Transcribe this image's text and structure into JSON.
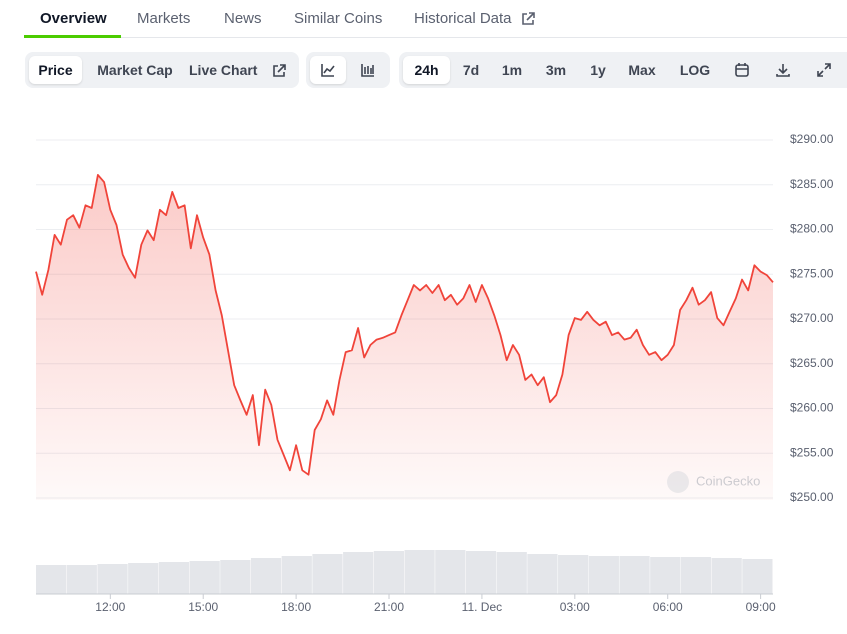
{
  "tabs": [
    "Overview",
    "Markets",
    "News",
    "Similar Coins",
    "Historical Data"
  ],
  "toolbar": {
    "metric": [
      "Price",
      "Market Cap",
      "Live Chart"
    ],
    "range": [
      "24h",
      "7d",
      "1m",
      "3m",
      "1y",
      "Max",
      "LOG"
    ]
  },
  "watermark": "CoinGecko",
  "chart_data": {
    "type": "line",
    "x": [
      -2.4,
      -2.2,
      -2,
      -1.8,
      -1.6,
      -1.4,
      -1.2,
      -1,
      -0.8,
      -0.6,
      -0.4,
      -0.2,
      0,
      0.2,
      0.4,
      0.6,
      0.8,
      1,
      1.2,
      1.4,
      1.6,
      1.8,
      2,
      2.2,
      2.4,
      2.6,
      2.8,
      3,
      3.2,
      3.4,
      3.6,
      3.8,
      4,
      4.2,
      4.4,
      4.6,
      4.8,
      5,
      5.2,
      5.4,
      5.6,
      5.8,
      6,
      6.2,
      6.4,
      6.6,
      6.8,
      7,
      7.2,
      7.4,
      7.6,
      7.8,
      8,
      8.2,
      8.4,
      8.6,
      8.8,
      9,
      9.2,
      9.4,
      9.6,
      9.8,
      10,
      10.2,
      10.4,
      10.6,
      10.8,
      11,
      11.2,
      11.4,
      11.6,
      11.8,
      12,
      12.2,
      12.4,
      12.6,
      12.8,
      13,
      13.2,
      13.4,
      13.6,
      13.8,
      14,
      14.2,
      14.4,
      14.6,
      14.8,
      15,
      15.2,
      15.4,
      15.6,
      15.8,
      16,
      16.2,
      16.4,
      16.6,
      16.8,
      17,
      17.2,
      17.4,
      17.6,
      17.8,
      18,
      18.2,
      18.4,
      18.6,
      18.8,
      19,
      19.2,
      19.4,
      19.6,
      19.8,
      20,
      20.2,
      20.4,
      20.6,
      20.8,
      21,
      21.2,
      21.4
    ],
    "series": [
      {
        "color": "#f0443a",
        "values": [
          275.3,
          272.7,
          275.5,
          279.4,
          278.3,
          281.1,
          281.6,
          280.2,
          282.7,
          282.4,
          286.1,
          285.3,
          282.2,
          280.5,
          277.2,
          275.7,
          274.6,
          278.3,
          279.9,
          278.8,
          282.2,
          281.6,
          284.2,
          282.4,
          282.7,
          277.9,
          281.6,
          279.1,
          277.2,
          273.2,
          270.4,
          266.5,
          262.6,
          260.9,
          259.3,
          261.5,
          255.9,
          262.1,
          260.4,
          256.5,
          254.8,
          253.1,
          255.9,
          253.1,
          252.6,
          257.6,
          258.8,
          260.9,
          259.3,
          263.2,
          266.3,
          266.5,
          269.0,
          265.7,
          267.1,
          267.7,
          267.9,
          268.2,
          268.5,
          270.4,
          272.1,
          273.8,
          273.2,
          273.8,
          272.9,
          273.8,
          272.1,
          272.7,
          271.6,
          272.3,
          273.8,
          271.9,
          273.8,
          272.3,
          270.4,
          268.2,
          265.4,
          267.1,
          266.0,
          263.2,
          263.8,
          262.6,
          263.5,
          260.7,
          261.5,
          263.8,
          268.2,
          270.1,
          269.9,
          270.8,
          269.9,
          269.3,
          269.7,
          268.2,
          268.5,
          267.7,
          267.9,
          268.8,
          267.1,
          266.0,
          266.3,
          265.4,
          266.0,
          267.1,
          271.0,
          272.1,
          273.5,
          271.6,
          272.1,
          273.0,
          270.1,
          269.3,
          270.8,
          272.3,
          274.4,
          273.2,
          276.0,
          275.3,
          274.9,
          274.1
        ]
      }
    ],
    "xlim": [
      -2.4,
      21.4
    ],
    "xticks": [
      {
        "value": 0,
        "label": "12:00"
      },
      {
        "value": 3,
        "label": "15:00"
      },
      {
        "value": 6,
        "label": "18:00"
      },
      {
        "value": 9,
        "label": "21:00"
      },
      {
        "value": 12,
        "label": "11. Dec"
      },
      {
        "value": 15,
        "label": "03:00"
      },
      {
        "value": 18,
        "label": "06:00"
      },
      {
        "value": 21,
        "label": "09:00"
      }
    ],
    "ylim": [
      250,
      290
    ],
    "yticks": [
      {
        "value": 250,
        "label": "$250.00"
      },
      {
        "value": 255,
        "label": "$255.00"
      },
      {
        "value": 260,
        "label": "$260.00"
      },
      {
        "value": 265,
        "label": "$265.00"
      },
      {
        "value": 270,
        "label": "$270.00"
      },
      {
        "value": 275,
        "label": "$275.00"
      },
      {
        "value": 280,
        "label": "$280.00"
      },
      {
        "value": 285,
        "label": "$285.00"
      },
      {
        "value": 290,
        "label": "$290.00"
      }
    ],
    "grid": true,
    "volume": {
      "color": "#e4e6ea",
      "lim": [
        0,
        100
      ],
      "values": [
        29,
        29,
        30,
        31,
        32,
        33,
        34,
        36,
        38,
        40,
        42,
        43,
        44,
        44,
        43,
        42,
        40,
        39,
        38,
        38,
        37,
        37,
        36,
        35
      ]
    }
  }
}
